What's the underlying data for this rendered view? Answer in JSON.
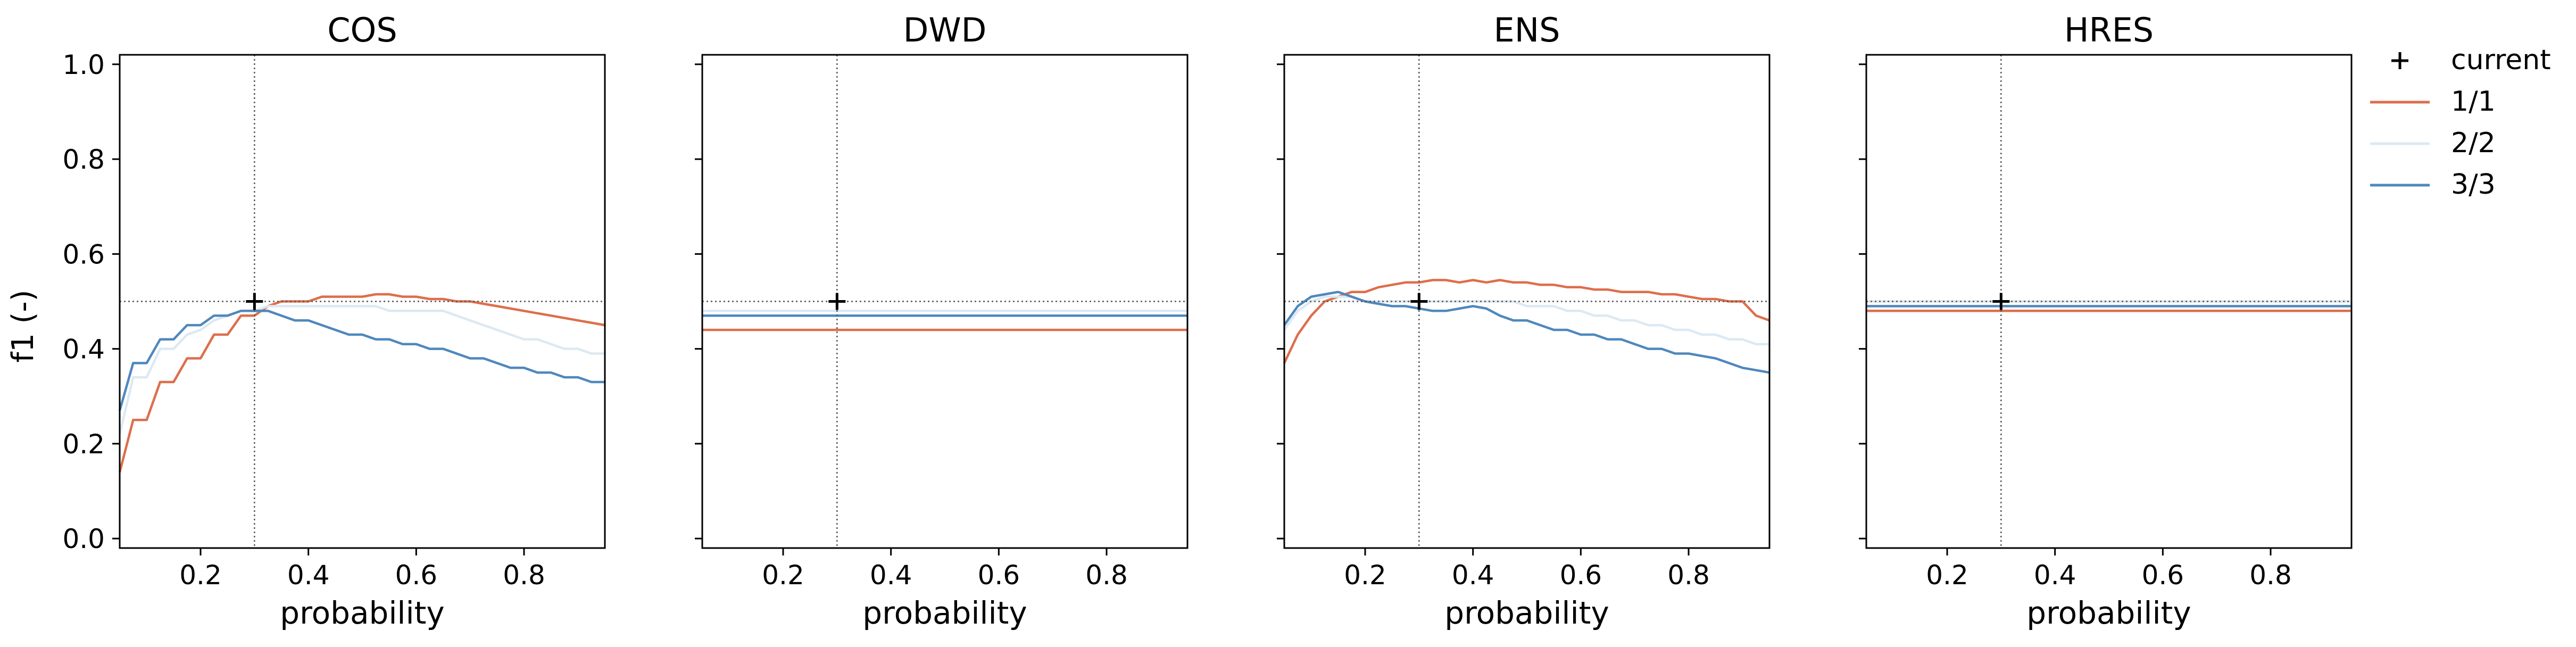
{
  "figure": {
    "ylabel": "f1 (-)",
    "xlabel": "probability",
    "legend_placement": "outside right, top",
    "legend": [
      {
        "label": "current",
        "marker": "+",
        "color": "#000000"
      },
      {
        "label": "1/1",
        "color": "#de6e4b"
      },
      {
        "label": "2/2",
        "color": "#dce9f3"
      },
      {
        "label": "3/3",
        "color": "#4f88bd"
      }
    ],
    "colors": {
      "1/1": "#de6e4b",
      "2/2": "#dce9f3",
      "3/3": "#4f88bd",
      "current": "#000000",
      "reference": "#555555"
    }
  },
  "chart_data": [
    {
      "type": "line",
      "title": "COS",
      "xlabel": "probability",
      "ylabel": "f1 (-)",
      "xlim": [
        0.05,
        0.95
      ],
      "ylim": [
        -0.02,
        1.02
      ],
      "xticks": [
        "0.2",
        "0.4",
        "0.6",
        "0.8"
      ],
      "yticks": [
        "0.0",
        "0.2",
        "0.4",
        "0.6",
        "0.8",
        "1.0"
      ],
      "grid": false,
      "current": {
        "x": 0.3,
        "y": 0.5
      },
      "x": [
        0.05,
        0.075,
        0.1,
        0.125,
        0.15,
        0.175,
        0.2,
        0.225,
        0.25,
        0.275,
        0.3,
        0.325,
        0.35,
        0.375,
        0.4,
        0.425,
        0.45,
        0.475,
        0.5,
        0.525,
        0.55,
        0.575,
        0.6,
        0.625,
        0.65,
        0.675,
        0.7,
        0.725,
        0.75,
        0.775,
        0.8,
        0.825,
        0.85,
        0.875,
        0.9,
        0.925,
        0.95
      ],
      "series": [
        {
          "name": "1/1",
          "values": [
            0.14,
            0.25,
            0.25,
            0.33,
            0.33,
            0.38,
            0.38,
            0.43,
            0.43,
            0.47,
            0.47,
            0.49,
            0.5,
            0.5,
            0.5,
            0.51,
            0.51,
            0.51,
            0.51,
            0.515,
            0.515,
            0.51,
            0.51,
            0.505,
            0.505,
            0.5,
            0.5,
            0.495,
            0.49,
            0.485,
            0.48,
            0.475,
            0.47,
            0.465,
            0.46,
            0.455,
            0.45
          ]
        },
        {
          "name": "2/2",
          "values": [
            0.22,
            0.34,
            0.34,
            0.4,
            0.4,
            0.43,
            0.44,
            0.46,
            0.47,
            0.48,
            0.48,
            0.49,
            0.49,
            0.49,
            0.49,
            0.49,
            0.49,
            0.49,
            0.49,
            0.49,
            0.48,
            0.48,
            0.48,
            0.48,
            0.48,
            0.47,
            0.46,
            0.45,
            0.44,
            0.43,
            0.42,
            0.42,
            0.41,
            0.4,
            0.4,
            0.39,
            0.39
          ]
        },
        {
          "name": "3/3",
          "values": [
            0.27,
            0.37,
            0.37,
            0.42,
            0.42,
            0.45,
            0.45,
            0.47,
            0.47,
            0.48,
            0.48,
            0.48,
            0.47,
            0.46,
            0.46,
            0.45,
            0.44,
            0.43,
            0.43,
            0.42,
            0.42,
            0.41,
            0.41,
            0.4,
            0.4,
            0.39,
            0.38,
            0.38,
            0.37,
            0.36,
            0.36,
            0.35,
            0.35,
            0.34,
            0.34,
            0.33,
            0.33
          ]
        }
      ]
    },
    {
      "type": "line",
      "title": "DWD",
      "xlabel": "probability",
      "xlim": [
        0.05,
        0.95
      ],
      "ylim": [
        -0.02,
        1.02
      ],
      "xticks": [
        "0.2",
        "0.4",
        "0.6",
        "0.8"
      ],
      "grid": false,
      "current": {
        "x": 0.3,
        "y": 0.5
      },
      "x": [
        0.05,
        0.95
      ],
      "series": [
        {
          "name": "1/1",
          "values": [
            0.44,
            0.44
          ]
        },
        {
          "name": "2/2",
          "values": [
            0.48,
            0.48
          ]
        },
        {
          "name": "3/3",
          "values": [
            0.47,
            0.47
          ]
        }
      ]
    },
    {
      "type": "line",
      "title": "ENS",
      "xlabel": "probability",
      "xlim": [
        0.05,
        0.95
      ],
      "ylim": [
        -0.02,
        1.02
      ],
      "xticks": [
        "0.2",
        "0.4",
        "0.6",
        "0.8"
      ],
      "grid": false,
      "current": {
        "x": 0.3,
        "y": 0.5
      },
      "x": [
        0.05,
        0.075,
        0.1,
        0.125,
        0.15,
        0.175,
        0.2,
        0.225,
        0.25,
        0.275,
        0.3,
        0.325,
        0.35,
        0.375,
        0.4,
        0.425,
        0.45,
        0.475,
        0.5,
        0.525,
        0.55,
        0.575,
        0.6,
        0.625,
        0.65,
        0.675,
        0.7,
        0.725,
        0.75,
        0.775,
        0.8,
        0.825,
        0.85,
        0.875,
        0.9,
        0.925,
        0.95
      ],
      "series": [
        {
          "name": "1/1",
          "values": [
            0.37,
            0.43,
            0.47,
            0.5,
            0.51,
            0.52,
            0.52,
            0.53,
            0.535,
            0.54,
            0.54,
            0.545,
            0.545,
            0.54,
            0.545,
            0.54,
            0.545,
            0.54,
            0.54,
            0.535,
            0.535,
            0.53,
            0.53,
            0.525,
            0.525,
            0.52,
            0.52,
            0.52,
            0.515,
            0.515,
            0.51,
            0.505,
            0.505,
            0.5,
            0.5,
            0.47,
            0.46
          ]
        },
        {
          "name": "2/2",
          "values": [
            0.44,
            0.48,
            0.5,
            0.51,
            0.51,
            0.51,
            0.5,
            0.5,
            0.5,
            0.5,
            0.5,
            0.5,
            0.5,
            0.5,
            0.5,
            0.5,
            0.5,
            0.5,
            0.49,
            0.49,
            0.49,
            0.48,
            0.48,
            0.47,
            0.47,
            0.46,
            0.46,
            0.45,
            0.45,
            0.44,
            0.44,
            0.43,
            0.43,
            0.42,
            0.42,
            0.41,
            0.41
          ]
        },
        {
          "name": "3/3",
          "values": [
            0.45,
            0.49,
            0.51,
            0.515,
            0.52,
            0.51,
            0.5,
            0.495,
            0.49,
            0.49,
            0.485,
            0.48,
            0.48,
            0.485,
            0.49,
            0.485,
            0.47,
            0.46,
            0.46,
            0.45,
            0.44,
            0.44,
            0.43,
            0.43,
            0.42,
            0.42,
            0.41,
            0.4,
            0.4,
            0.39,
            0.39,
            0.385,
            0.38,
            0.37,
            0.36,
            0.355,
            0.35
          ]
        }
      ]
    },
    {
      "type": "line",
      "title": "HRES",
      "xlabel": "probability",
      "xlim": [
        0.05,
        0.95
      ],
      "ylim": [
        -0.02,
        1.02
      ],
      "xticks": [
        "0.2",
        "0.4",
        "0.6",
        "0.8"
      ],
      "grid": false,
      "current": {
        "x": 0.3,
        "y": 0.5
      },
      "x": [
        0.05,
        0.95
      ],
      "series": [
        {
          "name": "1/1",
          "values": [
            0.48,
            0.48
          ]
        },
        {
          "name": "2/2",
          "values": [
            0.5,
            0.5
          ]
        },
        {
          "name": "3/3",
          "values": [
            0.49,
            0.49
          ]
        }
      ]
    }
  ]
}
